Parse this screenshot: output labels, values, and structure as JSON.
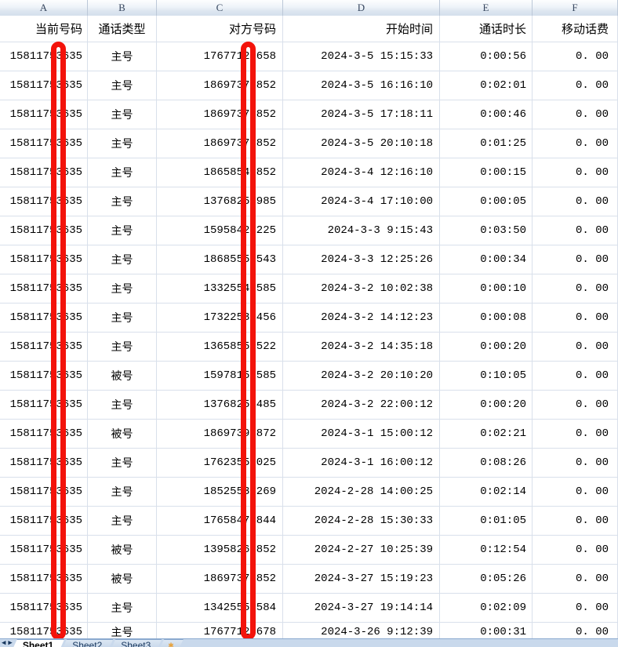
{
  "spreadsheet": {
    "column_letters": [
      "A",
      "B",
      "C",
      "D",
      "E",
      "F"
    ],
    "headers": [
      "当前号码",
      "通话类型",
      "对方号码",
      "开始时间",
      "通话时长",
      "移动话费"
    ],
    "rows": [
      [
        "15811753635",
        "主号",
        "17677123658",
        "2024-3-5 15:15:33",
        "0:00:56",
        "0. 00"
      ],
      [
        "15811753635",
        "主号",
        "18697378852",
        "2024-3-5 16:16:10",
        "0:02:01",
        "0. 00"
      ],
      [
        "15811753635",
        "主号",
        "18697378852",
        "2024-3-5 17:18:11",
        "0:00:46",
        "0. 00"
      ],
      [
        "15811753635",
        "主号",
        "18697378852",
        "2024-3-5 20:10:18",
        "0:01:25",
        "0. 00"
      ],
      [
        "15811753635",
        "主号",
        "18658548852",
        "2024-3-4 12:16:10",
        "0:00:15",
        "0. 00"
      ],
      [
        "15811753635",
        "主号",
        "13768250985",
        "2024-3-4 17:10:00",
        "0:00:05",
        "0. 00"
      ],
      [
        "15811753635",
        "主号",
        "15958426225",
        "2024-3-3 9:15:43",
        "0:03:50",
        "0. 00"
      ],
      [
        "15811753635",
        "主号",
        "18685552543",
        "2024-3-3 12:25:26",
        "0:00:34",
        "0. 00"
      ],
      [
        "15811753635",
        "主号",
        "13325545585",
        "2024-3-2 10:02:38",
        "0:00:10",
        "0. 00"
      ],
      [
        "15811753635",
        "主号",
        "17322538456",
        "2024-3-2 14:12:23",
        "0:00:08",
        "0. 00"
      ],
      [
        "15811753635",
        "主号",
        "13658558522",
        "2024-3-2 14:35:18",
        "0:00:20",
        "0. 00"
      ],
      [
        "15811753635",
        "被号",
        "15978156585",
        "2024-3-2 20:10:20",
        "0:10:05",
        "0. 00"
      ],
      [
        "15811753635",
        "主号",
        "13768252485",
        "2024-3-2 22:00:12",
        "0:00:20",
        "0. 00"
      ],
      [
        "15811753635",
        "被号",
        "18697398872",
        "2024-3-1 15:00:12",
        "0:02:21",
        "0. 00"
      ],
      [
        "15811753635",
        "主号",
        "17623558025",
        "2024-3-1 16:00:12",
        "0:08:26",
        "0. 00"
      ],
      [
        "15811753635",
        "主号",
        "18525534269",
        "2024-2-28 14:00:25",
        "0:02:14",
        "0. 00"
      ],
      [
        "15811753635",
        "主号",
        "17658474844",
        "2024-2-28 15:30:33",
        "0:01:05",
        "0. 00"
      ],
      [
        "15811753635",
        "被号",
        "13958265852",
        "2024-2-27 10:25:39",
        "0:12:54",
        "0. 00"
      ],
      [
        "15811753635",
        "被号",
        "18697378852",
        "2024-3-27 15:19:23",
        "0:05:26",
        "0. 00"
      ],
      [
        "15811753635",
        "主号",
        "13425557584",
        "2024-3-27 19:14:14",
        "0:02:09",
        "0. 00"
      ],
      [
        "15811753635",
        "主号",
        "17677123678",
        "2024-3-26 9:12:39",
        "0:00:31",
        "0. 00"
      ]
    ],
    "annotation": {
      "type": "redaction-bars",
      "color": "#f3130b",
      "covers": [
        "column A digit 7",
        "column C digit 6"
      ]
    },
    "tabbar": {
      "nav_icons": [
        "scroll-left-icon",
        "scroll-right-icon"
      ],
      "tabs": [
        "Sheet1",
        "Sheet2",
        "Sheet3"
      ],
      "active_tab": "Sheet1",
      "insert_icon": "✱"
    }
  }
}
